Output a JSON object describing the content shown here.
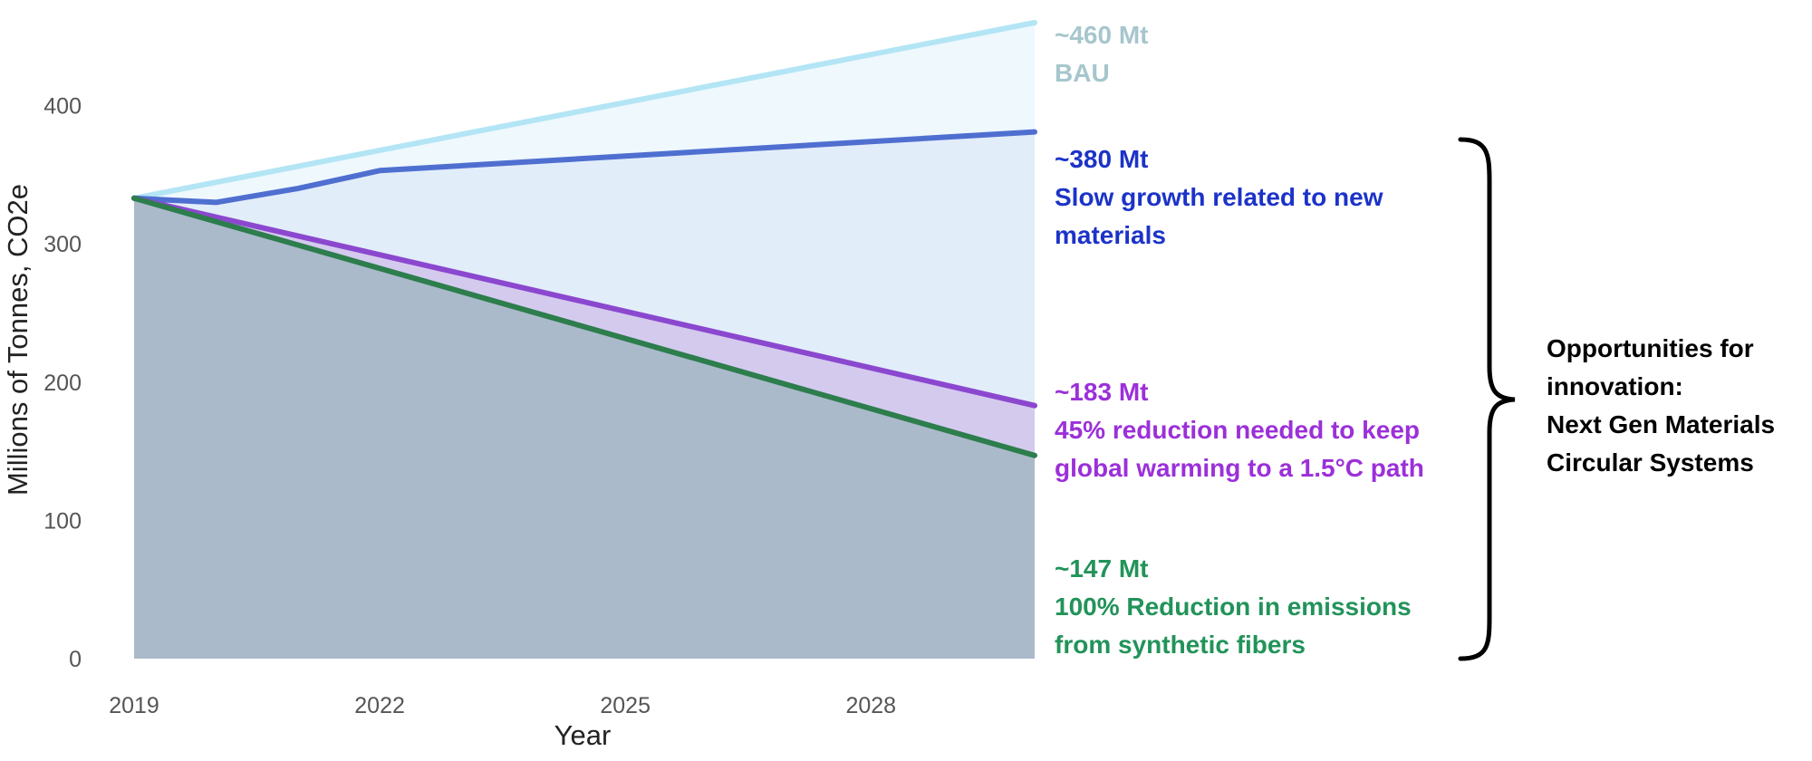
{
  "chart_data": {
    "type": "area",
    "title": "",
    "xlabel": "Year",
    "ylabel": "Millions of Tonnes, CO2e",
    "x_ticks": [
      "2019",
      "2022",
      "2025",
      "2028"
    ],
    "y_ticks": [
      "0",
      "100",
      "200",
      "300",
      "400"
    ],
    "xlim": [
      2019,
      2030
    ],
    "ylim": [
      0,
      460
    ],
    "grid": false,
    "legend": "none",
    "series": [
      {
        "key": "bau",
        "name": "BAU",
        "color": "#b3e5f5",
        "fill": "#eef8fd",
        "x": [
          2019,
          2030
        ],
        "values": [
          333,
          460
        ]
      },
      {
        "key": "slow",
        "name": "Slow growth related to new materials",
        "color": "#4f6fd0",
        "fill": "#e2edfa",
        "x": [
          2019,
          2019.3,
          2020,
          2021,
          2022,
          2030
        ],
        "values": [
          333,
          332,
          330,
          340,
          353,
          381
        ]
      },
      {
        "key": "reduction45",
        "name": "45% reduction needed to keep global warming to a 1.5°C path",
        "color": "#8b48cf",
        "fill": "#d4caee",
        "x": [
          2019,
          2030
        ],
        "values": [
          333,
          183
        ]
      },
      {
        "key": "reduction100",
        "name": "100% Reduction in emissions from synthetic fibers",
        "color": "#2d7d4d",
        "fill": "#abbacb",
        "x": [
          2019,
          2030
        ],
        "values": [
          333,
          147
        ]
      }
    ]
  },
  "annotations": {
    "bau": {
      "value": "~460 Mt",
      "line1": "BAU",
      "line2": "",
      "color": "#a6c6cd"
    },
    "slow": {
      "value": "~380 Mt",
      "line1": "Slow growth related to new",
      "line2": "materials",
      "color": "#1c33c8"
    },
    "reduction45": {
      "value": "~183 Mt",
      "line1": "45% reduction needed to keep",
      "line2": "global warming to a 1.5°C path",
      "color": "#9b30d9"
    },
    "reduction100": {
      "value": "~147 Mt",
      "line1": "100% Reduction in emissions",
      "line2": "from synthetic fibers",
      "color": "#22935a"
    }
  },
  "opportunities": {
    "line1": "Opportunities for",
    "line2": "innovation:",
    "line3": "Next Gen Materials",
    "line4": "Circular Systems"
  }
}
